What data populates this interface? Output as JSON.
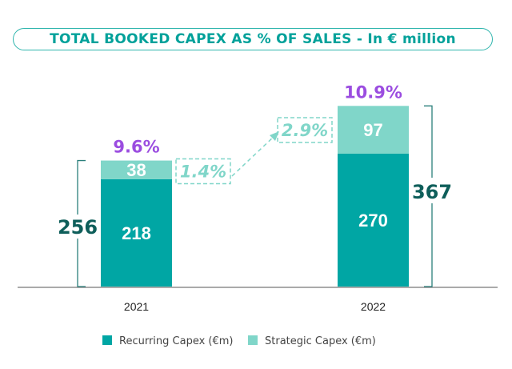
{
  "chart_data": {
    "type": "bar",
    "stacked": true,
    "title": "TOTAL BOOKED CAPEX AS % OF SALES - In € million",
    "categories": [
      "2021",
      "2022"
    ],
    "series": [
      {
        "name": "Recurring Capex (€m)",
        "values": [
          218,
          270
        ],
        "color": "#00a6a4"
      },
      {
        "name": "Strategic Capex (€m)",
        "values": [
          38,
          97
        ],
        "color": "#80d6c9"
      }
    ],
    "totals": [
      "256",
      "367"
    ],
    "totals_values": [
      256,
      367
    ],
    "capex_pct_of_sales": [
      "9.6%",
      "10.9%"
    ],
    "strategic_pct_of_sales": [
      "1.4%",
      "2.9%"
    ],
    "legend_placement": "bottom",
    "grid": false,
    "colors": {
      "title": "#00a19a",
      "percent": "#9b4de0",
      "total": "#0e5e5a",
      "bracket": "#2a7f7b",
      "axis": "#777777"
    }
  }
}
